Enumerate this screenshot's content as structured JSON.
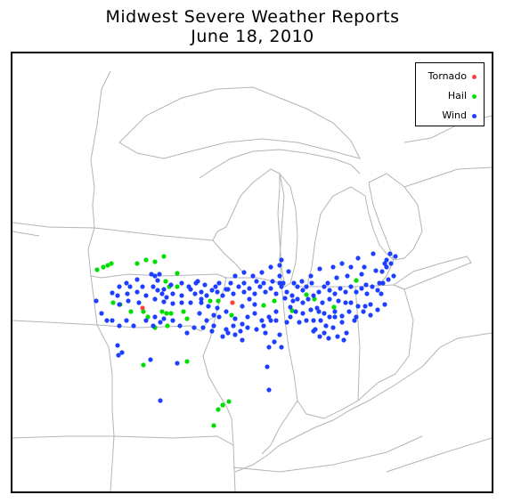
{
  "title": "Midwest Severe Weather Reports",
  "subtitle": "June 18, 2010",
  "legend": [
    {
      "label": "Tornado",
      "color": "#ff4040"
    },
    {
      "label": "Hail",
      "color": "#00dd00"
    },
    {
      "label": "Wind",
      "color": "#1f3fff"
    }
  ],
  "reports": {
    "tornado": [
      [
        247,
        280
      ],
      [
        146,
        286
      ]
    ],
    "hail": [
      [
        95,
        243
      ],
      [
        102,
        240
      ],
      [
        107,
        238
      ],
      [
        111,
        236
      ],
      [
        140,
        236
      ],
      [
        150,
        232
      ],
      [
        160,
        234
      ],
      [
        170,
        228
      ],
      [
        185,
        247
      ],
      [
        172,
        256
      ],
      [
        176,
        262
      ],
      [
        185,
        262
      ],
      [
        113,
        280
      ],
      [
        121,
        282
      ],
      [
        133,
        290
      ],
      [
        147,
        290
      ],
      [
        152,
        296
      ],
      [
        168,
        290
      ],
      [
        178,
        292
      ],
      [
        160,
        308
      ],
      [
        174,
        306
      ],
      [
        192,
        290
      ],
      [
        196,
        298
      ],
      [
        222,
        278
      ],
      [
        231,
        278
      ],
      [
        246,
        294
      ],
      [
        282,
        283
      ],
      [
        294,
        278
      ],
      [
        314,
        289
      ],
      [
        339,
        276
      ],
      [
        386,
        255
      ],
      [
        361,
        285
      ],
      [
        330,
        271
      ],
      [
        147,
        350
      ],
      [
        196,
        346
      ],
      [
        243,
        391
      ],
      [
        236,
        395
      ],
      [
        231,
        400
      ],
      [
        226,
        418
      ],
      [
        173,
        292
      ]
    ],
    "wind": [
      [
        123,
        336
      ],
      [
        119,
        339
      ],
      [
        156,
        248
      ],
      [
        160,
        250
      ],
      [
        165,
        248
      ],
      [
        163,
        255
      ],
      [
        170,
        265
      ],
      [
        178,
        260
      ],
      [
        112,
        269
      ],
      [
        118,
        272
      ],
      [
        129,
        270
      ],
      [
        140,
        268
      ],
      [
        150,
        272
      ],
      [
        160,
        276
      ],
      [
        170,
        279
      ],
      [
        180,
        281
      ],
      [
        190,
        272
      ],
      [
        200,
        265
      ],
      [
        205,
        270
      ],
      [
        212,
        268
      ],
      [
        218,
        272
      ],
      [
        224,
        266
      ],
      [
        230,
        268
      ],
      [
        236,
        272
      ],
      [
        242,
        265
      ],
      [
        248,
        270
      ],
      [
        254,
        262
      ],
      [
        260,
        268
      ],
      [
        266,
        264
      ],
      [
        272,
        270
      ],
      [
        278,
        262
      ],
      [
        284,
        268
      ],
      [
        290,
        264
      ],
      [
        296,
        270
      ],
      [
        302,
        262
      ],
      [
        308,
        268
      ],
      [
        314,
        272
      ],
      [
        320,
        276
      ],
      [
        326,
        280
      ],
      [
        332,
        276
      ],
      [
        338,
        272
      ],
      [
        344,
        268
      ],
      [
        350,
        262
      ],
      [
        356,
        266
      ],
      [
        362,
        270
      ],
      [
        368,
        264
      ],
      [
        374,
        268
      ],
      [
        380,
        262
      ],
      [
        386,
        268
      ],
      [
        392,
        264
      ],
      [
        398,
        270
      ],
      [
        404,
        262
      ],
      [
        410,
        266
      ],
      [
        416,
        258
      ],
      [
        422,
        254
      ],
      [
        428,
        250
      ],
      [
        415,
        245
      ],
      [
        420,
        240
      ],
      [
        425,
        236
      ],
      [
        420,
        232
      ],
      [
        430,
        228
      ],
      [
        424,
        225
      ],
      [
        405,
        225
      ],
      [
        395,
        240
      ],
      [
        380,
        240
      ],
      [
        370,
        236
      ],
      [
        360,
        240
      ],
      [
        345,
        242
      ],
      [
        335,
        250
      ],
      [
        325,
        256
      ],
      [
        310,
        245
      ],
      [
        300,
        238
      ],
      [
        290,
        240
      ],
      [
        280,
        246
      ],
      [
        270,
        250
      ],
      [
        260,
        246
      ],
      [
        250,
        250
      ],
      [
        245,
        258
      ],
      [
        240,
        265
      ],
      [
        228,
        262
      ],
      [
        216,
        260
      ],
      [
        206,
        258
      ],
      [
        198,
        262
      ],
      [
        300,
        250
      ],
      [
        302,
        232
      ],
      [
        304,
        258
      ],
      [
        306,
        275
      ],
      [
        312,
        285
      ],
      [
        318,
        290
      ],
      [
        326,
        292
      ],
      [
        335,
        288
      ],
      [
        342,
        286
      ],
      [
        350,
        292
      ],
      [
        356,
        296
      ],
      [
        362,
        290
      ],
      [
        370,
        295
      ],
      [
        378,
        290
      ],
      [
        386,
        296
      ],
      [
        394,
        290
      ],
      [
        402,
        294
      ],
      [
        410,
        288
      ],
      [
        418,
        282
      ],
      [
        346,
        300
      ],
      [
        340,
        310
      ],
      [
        350,
        314
      ],
      [
        360,
        308
      ],
      [
        370,
        302
      ],
      [
        375,
        314
      ],
      [
        365,
        318
      ],
      [
        355,
        320
      ],
      [
        345,
        318
      ],
      [
        338,
        312
      ],
      [
        240,
        290
      ],
      [
        250,
        298
      ],
      [
        258,
        304
      ],
      [
        264,
        296
      ],
      [
        272,
        292
      ],
      [
        280,
        300
      ],
      [
        288,
        296
      ],
      [
        248,
        306
      ],
      [
        256,
        312
      ],
      [
        264,
        308
      ],
      [
        274,
        310
      ],
      [
        282,
        306
      ],
      [
        290,
        300
      ],
      [
        210,
        292
      ],
      [
        218,
        300
      ],
      [
        226,
        306
      ],
      [
        232,
        296
      ],
      [
        240,
        310
      ],
      [
        150,
        300
      ],
      [
        158,
        306
      ],
      [
        166,
        302
      ],
      [
        136,
        306
      ],
      [
        128,
        300
      ],
      [
        120,
        306
      ],
      [
        112,
        300
      ],
      [
        94,
        278
      ],
      [
        100,
        292
      ],
      [
        106,
        300
      ],
      [
        140,
        254
      ],
      [
        128,
        258
      ],
      [
        120,
        262
      ],
      [
        132,
        262
      ],
      [
        146,
        262
      ],
      [
        158,
        262
      ],
      [
        168,
        270
      ],
      [
        180,
        270
      ],
      [
        190,
        280
      ],
      [
        200,
        280
      ],
      [
        212,
        280
      ],
      [
        220,
        284
      ],
      [
        230,
        286
      ],
      [
        388,
        230
      ],
      [
        397,
        260
      ],
      [
        402,
        282
      ],
      [
        372,
        322
      ],
      [
        384,
        300
      ],
      [
        330,
        300
      ],
      [
        338,
        300
      ],
      [
        344,
        290
      ],
      [
        322,
        302
      ],
      [
        312,
        296
      ],
      [
        296,
        290
      ],
      [
        272,
        282
      ],
      [
        294,
        324
      ],
      [
        302,
        330
      ],
      [
        118,
        328
      ],
      [
        155,
        344
      ],
      [
        185,
        348
      ],
      [
        166,
        390
      ],
      [
        288,
        378
      ],
      [
        286,
        352
      ],
      [
        300,
        258
      ],
      [
        282,
        258
      ],
      [
        274,
        256
      ],
      [
        260,
        258
      ],
      [
        232,
        258
      ],
      [
        208,
        256
      ],
      [
        190,
        258
      ],
      [
        173,
        274
      ],
      [
        163,
        266
      ],
      [
        142,
        280
      ],
      [
        130,
        278
      ],
      [
        120,
        282
      ],
      [
        330,
        262
      ],
      [
        336,
        258
      ],
      [
        354,
        258
      ],
      [
        364,
        252
      ],
      [
        376,
        250
      ],
      [
        392,
        248
      ],
      [
        408,
        244
      ],
      [
        418,
        236
      ],
      [
        352,
        306
      ],
      [
        362,
        296
      ],
      [
        380,
        280
      ],
      [
        388,
        284
      ],
      [
        396,
        284
      ],
      [
        414,
        270
      ],
      [
        412,
        258
      ],
      [
        292,
        256
      ],
      [
        320,
        262
      ],
      [
        315,
        278
      ],
      [
        308,
        302
      ],
      [
        300,
        316
      ],
      [
        284,
        314
      ],
      [
        236,
        318
      ],
      [
        224,
        312
      ],
      [
        214,
        308
      ],
      [
        204,
        308
      ],
      [
        196,
        314
      ],
      [
        188,
        306
      ],
      [
        180,
        300
      ],
      [
        170,
        298
      ],
      [
        160,
        296
      ],
      [
        348,
        280
      ],
      [
        356,
        276
      ],
      [
        366,
        278
      ],
      [
        374,
        280
      ],
      [
        288,
        330
      ],
      [
        326,
        266
      ],
      [
        296,
        300
      ],
      [
        258,
        284
      ],
      [
        266,
        276
      ],
      [
        316,
        258
      ],
      [
        258,
        322
      ],
      [
        250,
        316
      ],
      [
        242,
        314
      ],
      [
        226,
        294
      ],
      [
        212,
        276
      ]
    ]
  }
}
